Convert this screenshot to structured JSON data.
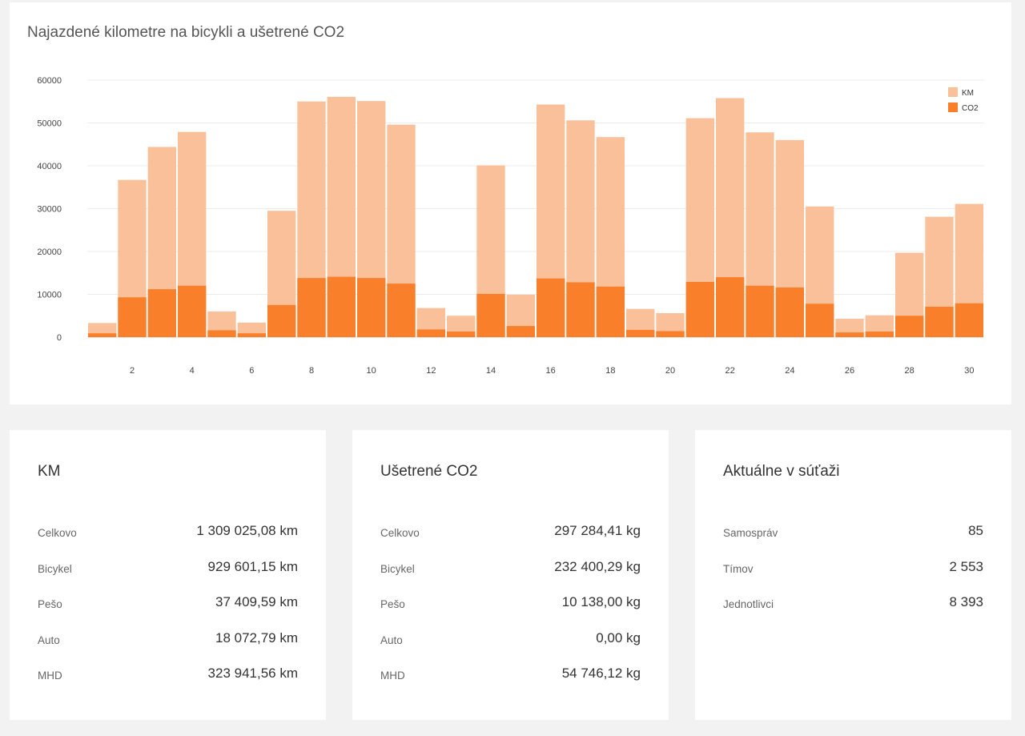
{
  "chart_card": {
    "title": "Najazdené kilometre na bicykli a ušetrené CO2"
  },
  "chart_data": {
    "type": "bar",
    "stacked": false,
    "overlay": true,
    "title": "Najazdené kilometre na bicykli a ušetrené CO2",
    "xlabel": "",
    "ylabel": "",
    "ylim": [
      0,
      60000
    ],
    "yticks": [
      0,
      10000,
      20000,
      30000,
      40000,
      50000,
      60000
    ],
    "categories": [
      "1",
      "2",
      "3",
      "4",
      "5",
      "6",
      "7",
      "8",
      "9",
      "10",
      "11",
      "12",
      "13",
      "14",
      "15",
      "16",
      "17",
      "18",
      "19",
      "20",
      "21",
      "22",
      "23",
      "24",
      "25",
      "26",
      "27",
      "28",
      "29",
      "30"
    ],
    "xtick_labels": [
      "2",
      "4",
      "6",
      "8",
      "10",
      "12",
      "14",
      "16",
      "18",
      "20",
      "22",
      "24",
      "26",
      "28",
      "30"
    ],
    "grid": true,
    "legend_position": "top-right",
    "series": [
      {
        "name": "KM",
        "color": "#f9c09a",
        "values": [
          3300,
          36700,
          44400,
          47900,
          6000,
          3400,
          29500,
          55000,
          56100,
          55100,
          49600,
          6800,
          5000,
          40100,
          9900,
          54300,
          50600,
          46700,
          6600,
          5600,
          51100,
          55800,
          47800,
          46000,
          30500,
          4300,
          5100,
          19700,
          28100,
          31100
        ]
      },
      {
        "name": "CO2",
        "color": "#fa7f2a",
        "values": [
          900,
          9300,
          11200,
          12000,
          1600,
          900,
          7500,
          13800,
          14100,
          13800,
          12500,
          1800,
          1300,
          10100,
          2600,
          13700,
          12800,
          11800,
          1700,
          1400,
          12900,
          14000,
          12000,
          11600,
          7800,
          1100,
          1300,
          5000,
          7100,
          7900
        ]
      }
    ]
  },
  "cards": {
    "km": {
      "title": "KM",
      "rows": [
        {
          "label": "Celkovo",
          "value": "1 309 025,08 km"
        },
        {
          "label": "Bicykel",
          "value": "929 601,15 km"
        },
        {
          "label": "Pešo",
          "value": "37 409,59 km"
        },
        {
          "label": "Auto",
          "value": "18 072,79 km"
        },
        {
          "label": "MHD",
          "value": "323 941,56 km"
        }
      ]
    },
    "co2": {
      "title": "Ušetrené CO2",
      "rows": [
        {
          "label": "Celkovo",
          "value": "297 284,41 kg"
        },
        {
          "label": "Bicykel",
          "value": "232 400,29 kg"
        },
        {
          "label": "Pešo",
          "value": "10 138,00 kg"
        },
        {
          "label": "Auto",
          "value": "0,00 kg"
        },
        {
          "label": "MHD",
          "value": "54 746,12 kg"
        }
      ]
    },
    "contest": {
      "title": "Aktuálne v súťaži",
      "rows": [
        {
          "label": "Samospráv",
          "value": "85"
        },
        {
          "label": "Tímov",
          "value": "2 553"
        },
        {
          "label": "Jednotlivci",
          "value": "8 393"
        }
      ]
    }
  }
}
